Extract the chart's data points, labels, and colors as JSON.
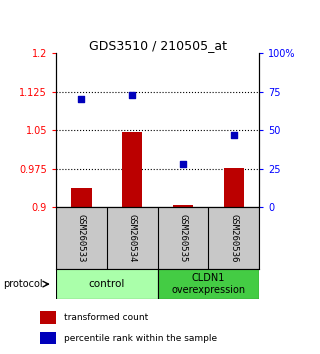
{
  "title": "GDS3510 / 210505_at",
  "samples": [
    "GSM260533",
    "GSM260534",
    "GSM260535",
    "GSM260536"
  ],
  "bar_values": [
    0.938,
    1.047,
    0.904,
    0.977
  ],
  "bar_base": 0.9,
  "scatter_values_pct": [
    70,
    73,
    28,
    47
  ],
  "ylim_left": [
    0.9,
    1.2
  ],
  "ylim_right": [
    0,
    100
  ],
  "yticks_left": [
    0.9,
    0.975,
    1.05,
    1.125,
    1.2
  ],
  "yticks_right": [
    0,
    25,
    50,
    75,
    100
  ],
  "ytick_labels_left": [
    "0.9",
    "0.975",
    "1.05",
    "1.125",
    "1.2"
  ],
  "ytick_labels_right": [
    "0",
    "25",
    "50",
    "75",
    "100%"
  ],
  "bar_color": "#bb0000",
  "scatter_color": "#0000bb",
  "group1_label": "control",
  "group2_label": "CLDN1\noverexpression",
  "group1_color": "#aaffaa",
  "group2_color": "#44cc44",
  "protocol_label": "protocol",
  "legend_bar_label": "transformed count",
  "legend_scatter_label": "percentile rank within the sample",
  "hline_values": [
    0.975,
    1.05,
    1.125
  ],
  "bg_color": "#ffffff",
  "sample_bg": "#c8c8c8"
}
